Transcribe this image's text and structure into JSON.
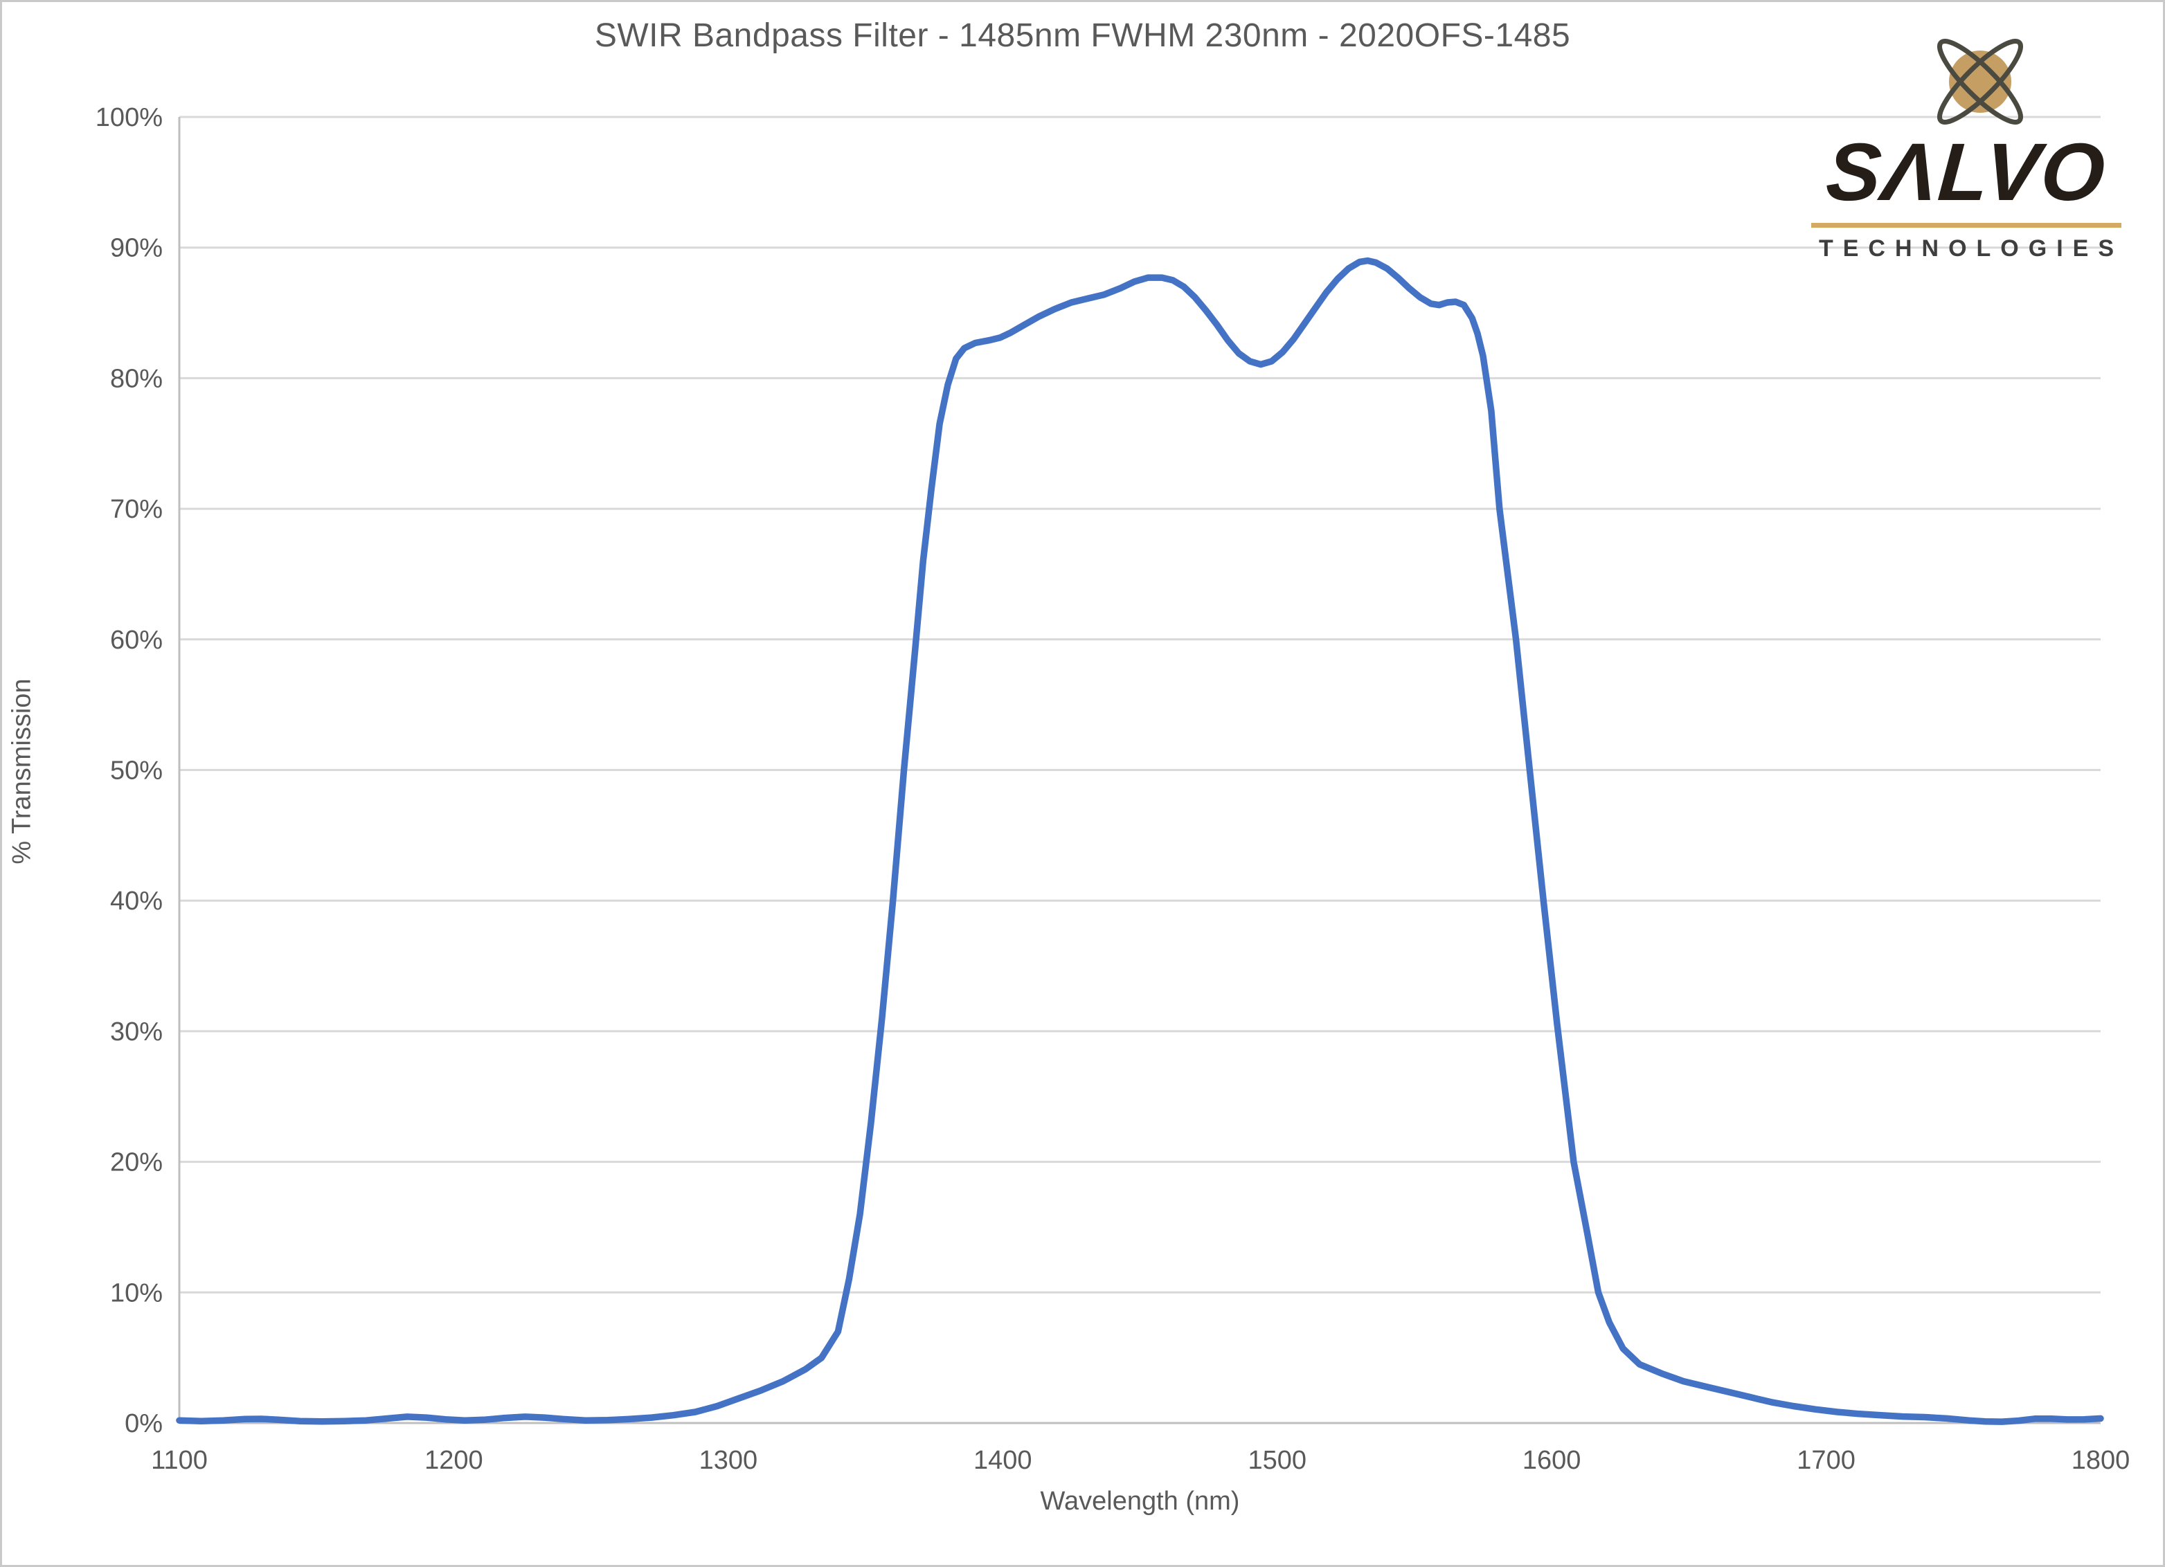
{
  "header": {
    "title": "SWIR Bandpass Filter - 1485nm FWHM 230nm - 2020OFS-1485"
  },
  "logo": {
    "brand": "SALVO",
    "brand_display": "SΛLVO",
    "subtitle": "TECHNOLOGIES",
    "colors": {
      "sphere_gold": "#c59e63",
      "orbit_gray": "#4b4a41",
      "wordmark": "#241d18",
      "underline_gold": "#d4a963",
      "subtitle_text": "#3e3e3e"
    }
  },
  "chart_data": {
    "type": "line",
    "title": "SWIR Bandpass Filter - 1485nm FWHM 230nm - 2020OFS-1485",
    "xlabel": "Wavelength (nm)",
    "ylabel": "% Transmission",
    "xlim": [
      1100,
      1800
    ],
    "ylim": [
      0,
      100
    ],
    "grid": "horizontal",
    "legend": "none",
    "grid_color": "#d9d9d9",
    "axis_color": "#bfbfbf",
    "text_color": "#595959",
    "x_ticks": [
      {
        "value": 1100,
        "label": "1100"
      },
      {
        "value": 1200,
        "label": "1200"
      },
      {
        "value": 1300,
        "label": "1300"
      },
      {
        "value": 1400,
        "label": "1400"
      },
      {
        "value": 1500,
        "label": "1500"
      },
      {
        "value": 1600,
        "label": "1600"
      },
      {
        "value": 1700,
        "label": "1700"
      },
      {
        "value": 1800,
        "label": "1800"
      }
    ],
    "y_ticks": [
      {
        "value": 0,
        "label": "0%"
      },
      {
        "value": 10,
        "label": "10%"
      },
      {
        "value": 20,
        "label": "20%"
      },
      {
        "value": 30,
        "label": "30%"
      },
      {
        "value": 40,
        "label": "40%"
      },
      {
        "value": 50,
        "label": "50%"
      },
      {
        "value": 60,
        "label": "60%"
      },
      {
        "value": 70,
        "label": "70%"
      },
      {
        "value": 80,
        "label": "80%"
      },
      {
        "value": 90,
        "label": "90%"
      },
      {
        "value": 100,
        "label": "100%"
      }
    ],
    "series": [
      {
        "name": "transmission",
        "color": "#4472c4",
        "stroke_width": 9.5,
        "points": [
          [
            1100,
            0.2
          ],
          [
            1108,
            0.15
          ],
          [
            1116,
            0.2
          ],
          [
            1124,
            0.3
          ],
          [
            1130,
            0.32
          ],
          [
            1136,
            0.25
          ],
          [
            1144,
            0.15
          ],
          [
            1152,
            0.12
          ],
          [
            1160,
            0.15
          ],
          [
            1168,
            0.2
          ],
          [
            1176,
            0.35
          ],
          [
            1183,
            0.48
          ],
          [
            1190,
            0.42
          ],
          [
            1197,
            0.28
          ],
          [
            1204,
            0.2
          ],
          [
            1211,
            0.25
          ],
          [
            1218,
            0.38
          ],
          [
            1226,
            0.48
          ],
          [
            1233,
            0.42
          ],
          [
            1240,
            0.3
          ],
          [
            1248,
            0.2
          ],
          [
            1256,
            0.22
          ],
          [
            1264,
            0.3
          ],
          [
            1272,
            0.42
          ],
          [
            1280,
            0.6
          ],
          [
            1288,
            0.85
          ],
          [
            1296,
            1.3
          ],
          [
            1304,
            1.9
          ],
          [
            1312,
            2.5
          ],
          [
            1320,
            3.2
          ],
          [
            1328,
            4.1
          ],
          [
            1334,
            5.0
          ],
          [
            1340,
            7.0
          ],
          [
            1344,
            11
          ],
          [
            1348,
            16
          ],
          [
            1352,
            23
          ],
          [
            1356,
            31
          ],
          [
            1360,
            40
          ],
          [
            1364,
            50
          ],
          [
            1368,
            59
          ],
          [
            1371,
            66
          ],
          [
            1374,
            71.5
          ],
          [
            1377,
            76.5
          ],
          [
            1380,
            79.5
          ],
          [
            1383,
            81.5
          ],
          [
            1386,
            82.3
          ],
          [
            1390,
            82.7
          ],
          [
            1395,
            82.9
          ],
          [
            1399,
            83.1
          ],
          [
            1403,
            83.5
          ],
          [
            1408,
            84.1
          ],
          [
            1413,
            84.7
          ],
          [
            1419,
            85.3
          ],
          [
            1425,
            85.8
          ],
          [
            1431,
            86.1
          ],
          [
            1437,
            86.4
          ],
          [
            1443,
            86.9
          ],
          [
            1448,
            87.4
          ],
          [
            1453,
            87.7
          ],
          [
            1458,
            87.7
          ],
          [
            1462,
            87.5
          ],
          [
            1466,
            87.0
          ],
          [
            1470,
            86.2
          ],
          [
            1474,
            85.2
          ],
          [
            1478,
            84.1
          ],
          [
            1482,
            82.9
          ],
          [
            1486,
            81.9
          ],
          [
            1490,
            81.3
          ],
          [
            1494,
            81.05
          ],
          [
            1498,
            81.3
          ],
          [
            1502,
            82.0
          ],
          [
            1506,
            83.0
          ],
          [
            1510,
            84.2
          ],
          [
            1514,
            85.4
          ],
          [
            1518,
            86.6
          ],
          [
            1522,
            87.6
          ],
          [
            1526,
            88.4
          ],
          [
            1530,
            88.9
          ],
          [
            1533,
            89.0
          ],
          [
            1536,
            88.85
          ],
          [
            1540,
            88.4
          ],
          [
            1544,
            87.7
          ],
          [
            1548,
            86.9
          ],
          [
            1552,
            86.2
          ],
          [
            1556,
            85.7
          ],
          [
            1559,
            85.6
          ],
          [
            1562,
            85.8
          ],
          [
            1565,
            85.85
          ],
          [
            1568,
            85.6
          ],
          [
            1571,
            84.6
          ],
          [
            1573,
            83.4
          ],
          [
            1575,
            81.7
          ],
          [
            1578,
            77.5
          ],
          [
            1581,
            70
          ],
          [
            1584,
            65
          ],
          [
            1587,
            60
          ],
          [
            1592,
            50
          ],
          [
            1597,
            40
          ],
          [
            1602,
            30.5
          ],
          [
            1608,
            20
          ],
          [
            1613,
            14.5
          ],
          [
            1617,
            10
          ],
          [
            1621,
            7.7
          ],
          [
            1626,
            5.7
          ],
          [
            1632,
            4.5
          ],
          [
            1640,
            3.8
          ],
          [
            1648,
            3.2
          ],
          [
            1656,
            2.8
          ],
          [
            1664,
            2.4
          ],
          [
            1672,
            2.0
          ],
          [
            1680,
            1.6
          ],
          [
            1688,
            1.3
          ],
          [
            1696,
            1.05
          ],
          [
            1704,
            0.85
          ],
          [
            1712,
            0.7
          ],
          [
            1720,
            0.6
          ],
          [
            1728,
            0.5
          ],
          [
            1736,
            0.45
          ],
          [
            1744,
            0.35
          ],
          [
            1752,
            0.2
          ],
          [
            1758,
            0.12
          ],
          [
            1764,
            0.1
          ],
          [
            1770,
            0.18
          ],
          [
            1776,
            0.33
          ],
          [
            1782,
            0.33
          ],
          [
            1788,
            0.27
          ],
          [
            1794,
            0.28
          ],
          [
            1800,
            0.35
          ]
        ]
      }
    ]
  }
}
